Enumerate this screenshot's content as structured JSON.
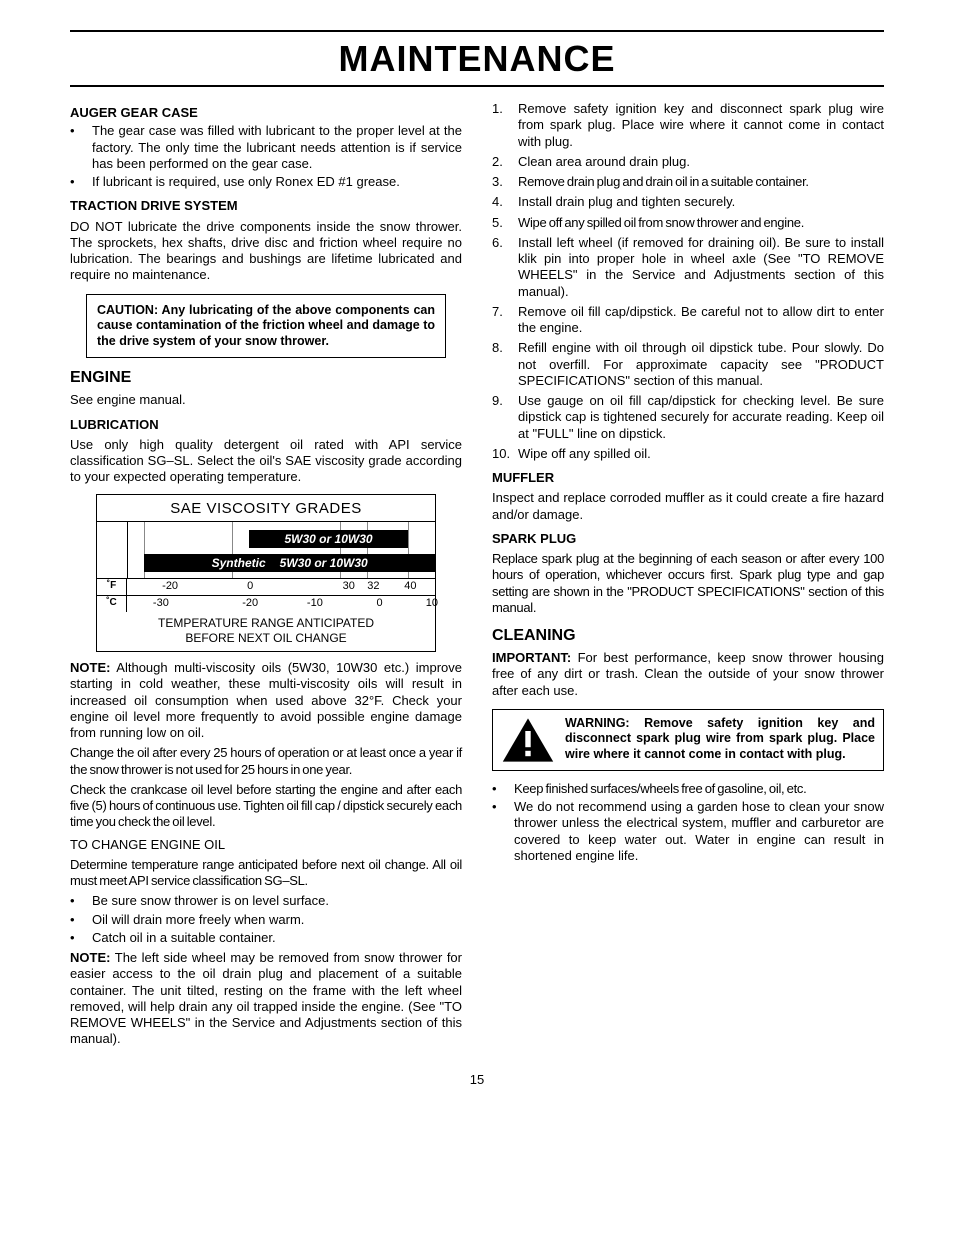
{
  "page_title": "MAINTENANCE",
  "page_number": "15",
  "left": {
    "auger": {
      "heading": "AUGER GEAR CASE",
      "b1": "The gear case was filled with lubricant to the proper level at the factory. The only time the lubricant needs attention is if service has been performed on the gear case.",
      "b2": "If lubricant is required, use only Ronex ED #1 grease."
    },
    "traction": {
      "heading": "TRACTION DRIVE SYSTEM",
      "p1": "DO NOT lubricate the drive components inside the snow thrower. The sprockets, hex shafts, drive disc and friction wheel require no lubrication. The bearings and bushings are lifetime lubricated and require no maintenance.",
      "caution": "CAUTION: Any lubricating of the above components can cause contamination of the friction wheel and damage to the drive system of your snow thrower."
    },
    "engine": {
      "heading": "ENGINE",
      "p1": "See engine manual."
    },
    "lubrication": {
      "heading": "LUBRICATION",
      "p1": "Use only high quality detergent oil rated with API service classification SG–SL. Select the oil's SAE viscosity grade according to your expected operating temperature."
    },
    "chart": {
      "title": "SAE VISCOSITY GRADES",
      "bar1_label": "5W30 or 10W30",
      "bar2_prefix": "Synthetic",
      "bar2_label": "5W30 or 10W30",
      "row_f_unit": "˚F",
      "row_c_unit": "˚C",
      "f_ticks": [
        {
          "label": "-20",
          "pct": 14
        },
        {
          "label": "0",
          "pct": 40
        },
        {
          "label": "30",
          "pct": 72
        },
        {
          "label": "32",
          "pct": 80
        },
        {
          "label": "40",
          "pct": 92
        }
      ],
      "c_ticks": [
        {
          "label": "-30",
          "pct": 11
        },
        {
          "label": "-20",
          "pct": 40
        },
        {
          "label": "-10",
          "pct": 61
        },
        {
          "label": "0",
          "pct": 82
        },
        {
          "label": "10",
          "pct": 99
        }
      ],
      "vlines_pct": [
        9,
        14,
        40,
        72,
        80,
        92
      ],
      "bar1": {
        "left_pct": 45,
        "right_pct": 92
      },
      "bar2": {
        "left_pct": 14,
        "right_pct": 100
      },
      "footer_l1": "TEMPERATURE RANGE ANTICIPATED",
      "footer_l2": "BEFORE NEXT OIL CHANGE"
    },
    "note1_label": "NOTE:",
    "note1": "Although multi-viscosity oils (5W30, 10W30 etc.) improve starting in cold weather, these multi-viscosity oils will result in increased oil consumption when used above 32°F. Check your engine oil level more frequently to avoid possible engine damage from running low on oil.",
    "p_change": "Change the oil after every 25 hours of operation or at least once a year if the snow thrower is not used for 25 hours in one year.",
    "p_check": "Check the crankcase oil level before starting the engine and after each five (5) hours of continuous use. Tighten oil fill cap / dipstick securely each time you check the oil level.",
    "to_change_heading": "TO CHANGE ENGINE OIL",
    "p_determine": "Determine temperature range anticipated before next oil change. All oil must meet API service classification SG–SL.",
    "b_level": "Be sure snow thrower is on level surface.",
    "b_warm": "Oil will drain more freely when warm.",
    "b_catch": "Catch oil in a suitable container.",
    "note2_label": "NOTE:",
    "note2": "The left side wheel may be removed from snow thrower for easier access to the oil drain plug and placement of a suitable container. The unit tilted, resting on the frame with the left wheel removed, will help drain any oil trapped inside the engine. (See \"TO REMOVE WHEELS\" in the Service and Adjustments section of this manual)."
  },
  "right": {
    "steps": {
      "s1": "Remove safety ignition key and disconnect spark plug wire from spark plug. Place wire where it cannot come in contact with plug.",
      "s2": "Clean area around drain plug.",
      "s3": "Remove drain plug and drain oil in a suitable container.",
      "s4": "Install drain plug and tighten securely.",
      "s5": "Wipe off any spilled oil from snow thrower and engine.",
      "s6": "Install left wheel (if removed for draining oil). Be sure to install klik pin into proper hole in wheel axle (See \"TO REMOVE WHEELS\" in the Service and Adjustments section of this manual).",
      "s7": "Remove oil fill cap/dipstick. Be careful not to allow dirt to enter the engine.",
      "s8": "Refill engine with oil through oil dipstick tube. Pour slowly. Do not overfill. For approximate capacity see \"PRODUCT SPECIFICATIONS\" section of this manual.",
      "s9": "Use gauge on oil fill cap/dipstick for checking level. Be sure dipstick cap is tightened securely for accurate reading. Keep oil at \"FULL\" line on dipstick.",
      "s10": "Wipe off any spilled oil."
    },
    "muffler": {
      "heading": "MUFFLER",
      "p1": "Inspect and replace corroded muffler as it could create a fire hazard and/or damage."
    },
    "spark": {
      "heading": "SPARK PLUG",
      "p1": "Replace spark plug at the beginning of each season or after every 100 hours of operation, whichever occurs first. Spark plug type and gap setting are shown in the \"PRODUCT SPECIFICATIONS\" section of this manual."
    },
    "cleaning": {
      "heading": "CLEANING",
      "important_label": "IMPORTANT:",
      "important": "For best performance, keep snow thrower housing free of any dirt or trash. Clean the outside of your snow thrower after each use.",
      "warning": "WARNING: Remove safety ignition key and disconnect spark plug wire from spark plug. Place wire where it cannot come in contact with plug.",
      "b1": "Keep finished surfaces/wheels free of gasoline, oil, etc.",
      "b2": "We do not recommend using a garden hose to clean your snow thrower unless the electrical system, muffler and carburetor are covered to keep water out. Water in engine can result in shortened engine life."
    }
  }
}
